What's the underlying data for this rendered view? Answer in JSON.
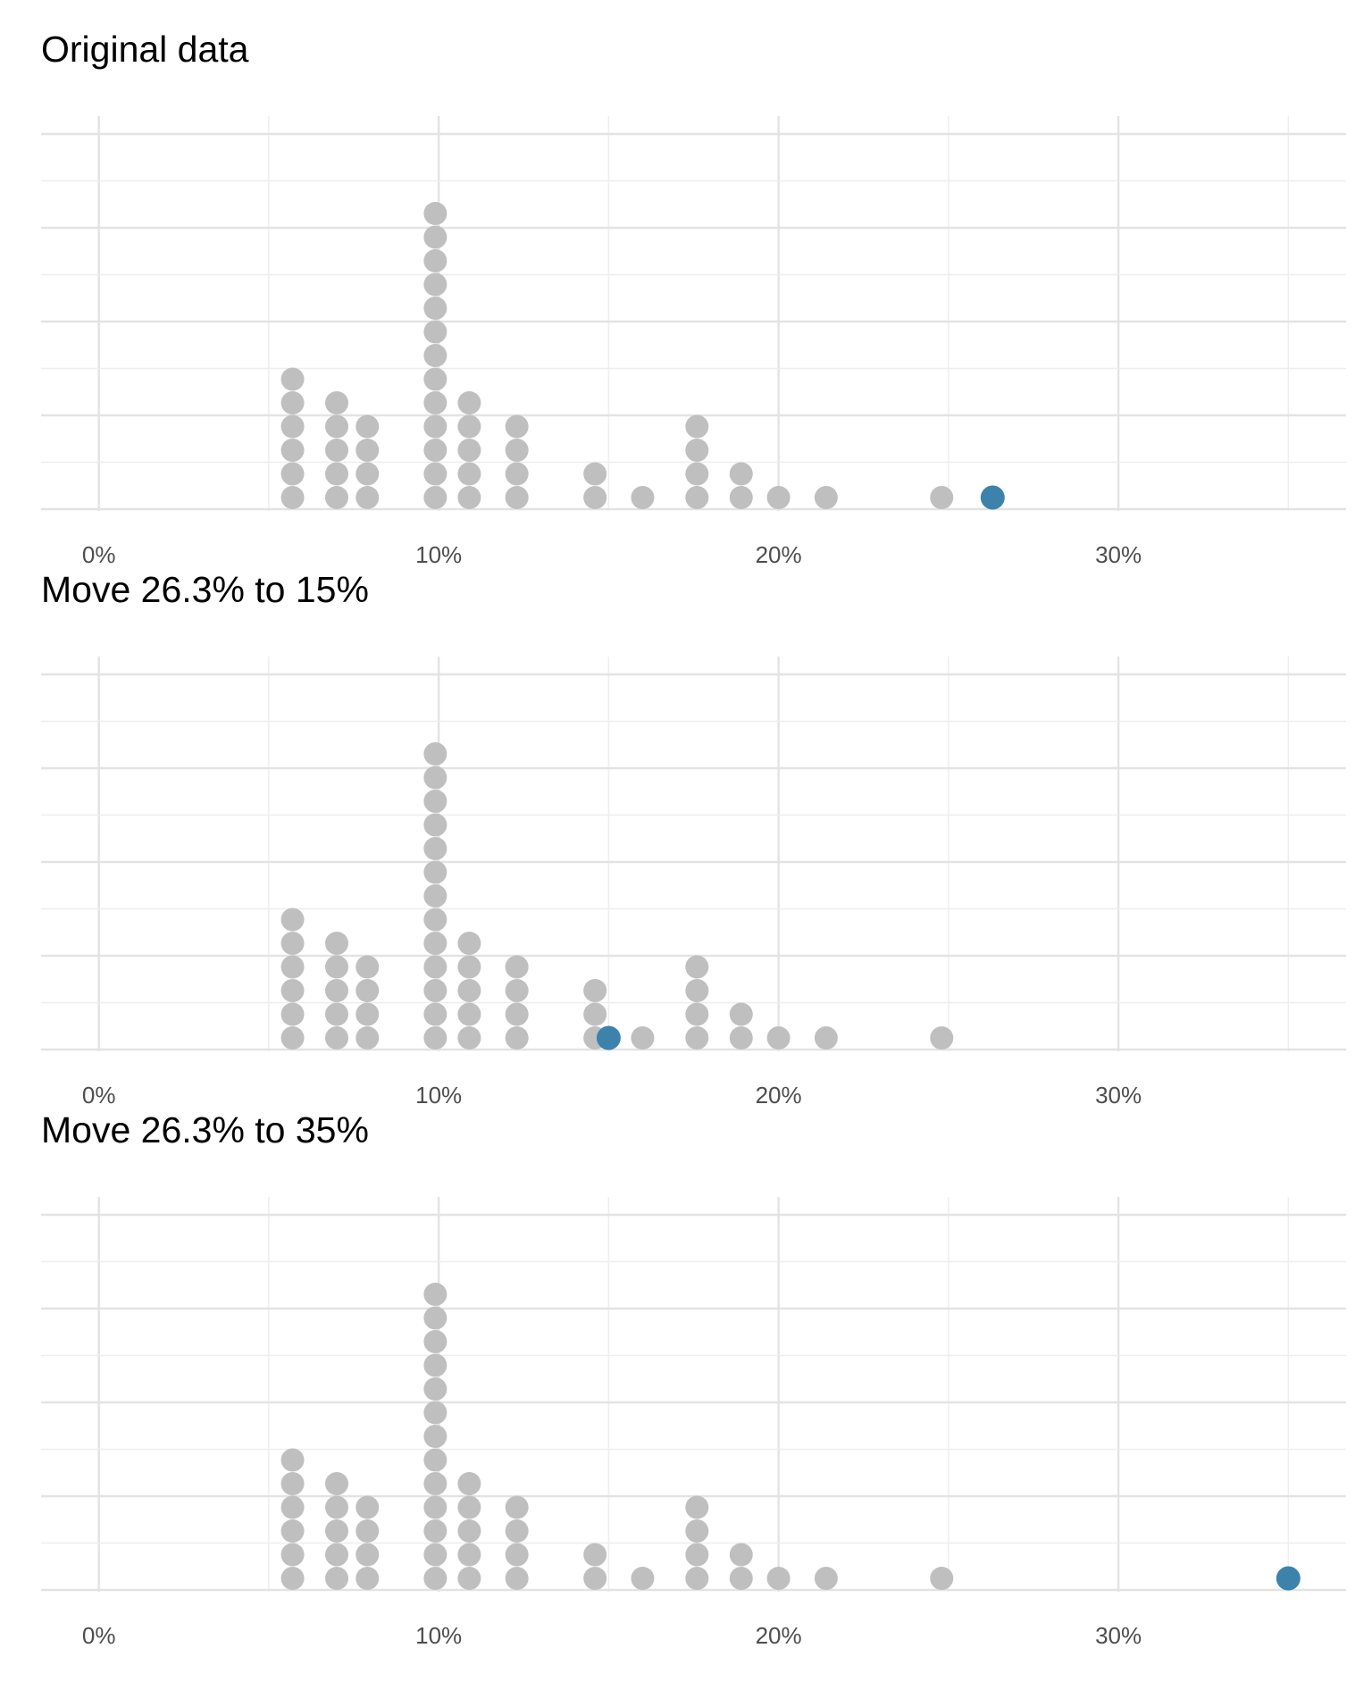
{
  "chart_data": [
    {
      "type": "scatter",
      "subtype": "dotplot",
      "title": "Original data",
      "xlabel": "",
      "ylabel": "",
      "xlim": [
        -1.7,
        36.7
      ],
      "x_ticks": [
        0,
        10,
        20,
        30
      ],
      "tick_labels": [
        "0%",
        "10%",
        "20%",
        "30%"
      ],
      "grid": true,
      "colors": {
        "points": "#bfbfbf",
        "highlight": "#3d82ab"
      },
      "stacks": [
        {
          "x": 5.7,
          "count": 6
        },
        {
          "x": 7.0,
          "count": 5
        },
        {
          "x": 7.9,
          "count": 4
        },
        {
          "x": 9.9,
          "count": 13
        },
        {
          "x": 10.9,
          "count": 5
        },
        {
          "x": 12.3,
          "count": 4
        },
        {
          "x": 14.6,
          "count": 2
        },
        {
          "x": 16.0,
          "count": 1
        },
        {
          "x": 17.6,
          "count": 4
        },
        {
          "x": 18.9,
          "count": 2
        },
        {
          "x": 20.0,
          "count": 1
        },
        {
          "x": 21.4,
          "count": 1
        },
        {
          "x": 24.8,
          "count": 1
        }
      ],
      "highlight": {
        "x": 26.3
      }
    },
    {
      "type": "scatter",
      "subtype": "dotplot",
      "title": "Move 26.3% to 15%",
      "xlabel": "",
      "ylabel": "",
      "xlim": [
        -1.7,
        36.7
      ],
      "x_ticks": [
        0,
        10,
        20,
        30
      ],
      "tick_labels": [
        "0%",
        "10%",
        "20%",
        "30%"
      ],
      "grid": true,
      "colors": {
        "points": "#bfbfbf",
        "highlight": "#3d82ab"
      },
      "stacks": [
        {
          "x": 5.7,
          "count": 6
        },
        {
          "x": 7.0,
          "count": 5
        },
        {
          "x": 7.9,
          "count": 4
        },
        {
          "x": 9.9,
          "count": 13
        },
        {
          "x": 10.9,
          "count": 5
        },
        {
          "x": 12.3,
          "count": 4
        },
        {
          "x": 14.6,
          "count": 3
        },
        {
          "x": 16.0,
          "count": 1
        },
        {
          "x": 17.6,
          "count": 4
        },
        {
          "x": 18.9,
          "count": 2
        },
        {
          "x": 20.0,
          "count": 1
        },
        {
          "x": 21.4,
          "count": 1
        },
        {
          "x": 24.8,
          "count": 1
        }
      ],
      "highlight": {
        "x": 15.0
      }
    },
    {
      "type": "scatter",
      "subtype": "dotplot",
      "title": "Move 26.3% to 35%",
      "xlabel": "",
      "ylabel": "",
      "xlim": [
        -1.7,
        36.7
      ],
      "x_ticks": [
        0,
        10,
        20,
        30
      ],
      "tick_labels": [
        "0%",
        "10%",
        "20%",
        "30%"
      ],
      "grid": true,
      "colors": {
        "points": "#bfbfbf",
        "highlight": "#3d82ab"
      },
      "stacks": [
        {
          "x": 5.7,
          "count": 6
        },
        {
          "x": 7.0,
          "count": 5
        },
        {
          "x": 7.9,
          "count": 4
        },
        {
          "x": 9.9,
          "count": 13
        },
        {
          "x": 10.9,
          "count": 5
        },
        {
          "x": 12.3,
          "count": 4
        },
        {
          "x": 14.6,
          "count": 2
        },
        {
          "x": 16.0,
          "count": 1
        },
        {
          "x": 17.6,
          "count": 4
        },
        {
          "x": 18.9,
          "count": 2
        },
        {
          "x": 20.0,
          "count": 1
        },
        {
          "x": 21.4,
          "count": 1
        },
        {
          "x": 24.8,
          "count": 1
        }
      ],
      "highlight": {
        "x": 35.0
      }
    }
  ]
}
